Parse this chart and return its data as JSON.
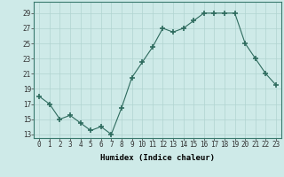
{
  "x": [
    0,
    1,
    2,
    3,
    4,
    5,
    6,
    7,
    8,
    9,
    10,
    11,
    12,
    13,
    14,
    15,
    16,
    17,
    18,
    19,
    20,
    21,
    22,
    23
  ],
  "y": [
    18,
    17,
    15,
    15.5,
    14.5,
    13.5,
    14,
    13,
    16.5,
    20.5,
    22.5,
    24.5,
    27,
    26.5,
    27,
    28,
    29,
    29,
    29,
    29,
    25,
    23,
    21,
    19.5
  ],
  "line_color": "#2e6b5e",
  "marker": "+",
  "marker_size": 4,
  "background_color": "#ceeae8",
  "grid_color": "#b0d4d0",
  "xlabel": "Humidex (Indice chaleur)",
  "xlim": [
    -0.5,
    23.5
  ],
  "ylim": [
    12.5,
    30.5
  ],
  "yticks": [
    13,
    15,
    17,
    19,
    21,
    23,
    25,
    27,
    29
  ],
  "xticks": [
    0,
    1,
    2,
    3,
    4,
    5,
    6,
    7,
    8,
    9,
    10,
    11,
    12,
    13,
    14,
    15,
    16,
    17,
    18,
    19,
    20,
    21,
    22,
    23
  ],
  "tick_fontsize": 5.5,
  "xlabel_fontsize": 6.5,
  "xlabel_fontweight": "bold"
}
